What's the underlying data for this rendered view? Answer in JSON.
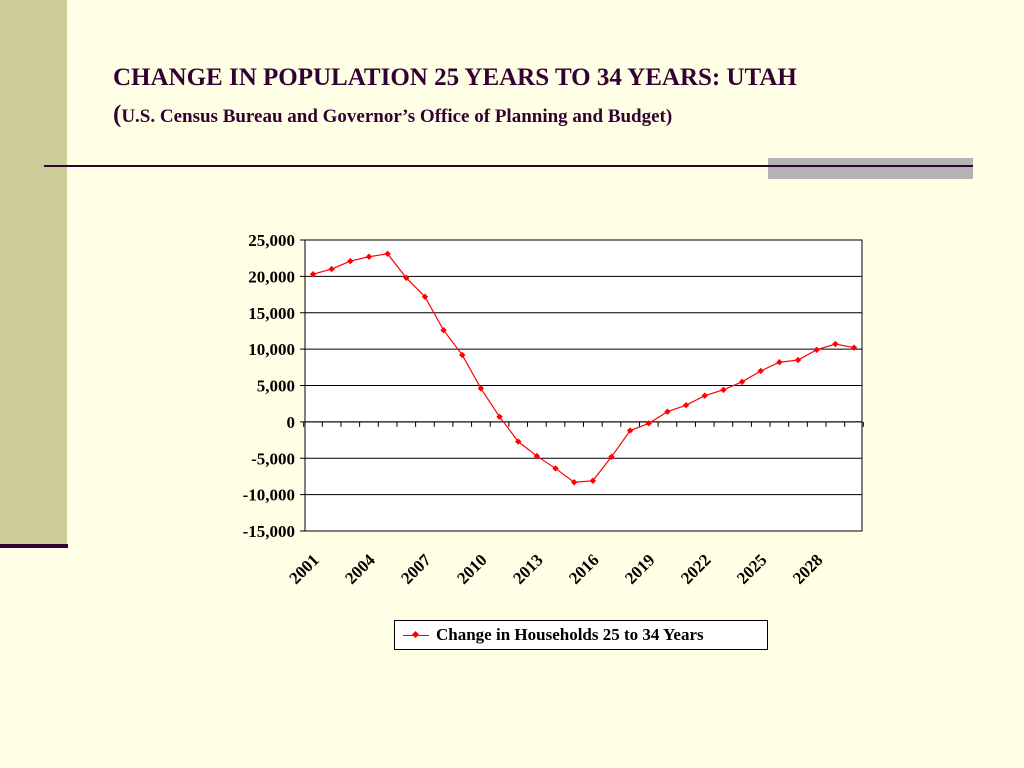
{
  "slide": {
    "title": "CHANGE IN POPULATION 25 YEARS TO 34 YEARS: UTAH",
    "subtitle_open_paren": "(",
    "subtitle_text": "U.S. Census Bureau and Governor’s Office of Planning and Budget)"
  },
  "colors": {
    "background": "#ffffe5",
    "sidebar": "#cccc99",
    "title_text": "#330033",
    "accent_bar": "#b3b3b3",
    "series": "#ff0000"
  },
  "chart_data": {
    "type": "line",
    "title": "",
    "xlabel": "",
    "ylabel": "",
    "ylim": [
      -15000,
      25000
    ],
    "yticks": [
      25000,
      20000,
      15000,
      10000,
      5000,
      0,
      -5000,
      -10000,
      -15000
    ],
    "ytick_labels": [
      "25,000",
      "20,000",
      "15,000",
      "10,000",
      "5,000",
      "0",
      "-5,000",
      "-10,000",
      "-15,000"
    ],
    "x": [
      2001,
      2002,
      2003,
      2004,
      2005,
      2006,
      2007,
      2008,
      2009,
      2010,
      2011,
      2012,
      2013,
      2014,
      2015,
      2016,
      2017,
      2018,
      2019,
      2020,
      2021,
      2022,
      2023,
      2024,
      2025,
      2026,
      2027,
      2028,
      2029,
      2030
    ],
    "xtick_labels": [
      "2001",
      "2004",
      "2007",
      "2010",
      "2013",
      "2016",
      "2019",
      "2022",
      "2025",
      "2028"
    ],
    "grid": true,
    "legend_position": "bottom",
    "series": [
      {
        "name": "Change in Households 25 to 34 Years",
        "color": "#ff0000",
        "marker": "diamond",
        "values": [
          20300,
          21000,
          22100,
          22700,
          23100,
          19800,
          17200,
          12600,
          9200,
          4600,
          700,
          -2700,
          -4700,
          -6400,
          -8300,
          -8100,
          -4800,
          -1200,
          -200,
          1400,
          2300,
          3600,
          4400,
          5500,
          7000,
          8200,
          8500,
          9900,
          10700,
          10200
        ]
      }
    ]
  }
}
